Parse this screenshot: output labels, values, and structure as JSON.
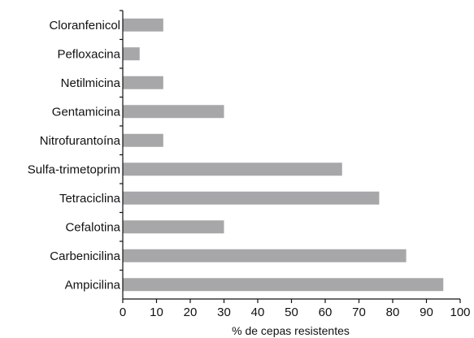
{
  "chart_data": {
    "type": "bar",
    "orientation": "horizontal",
    "categories": [
      "Cloranfenicol",
      "Pefloxacina",
      "Netilmicina",
      "Gentamicina",
      "Nitrofurantoína",
      "Sulfa-trimetoprim",
      "Tetraciclina",
      "Cefalotina",
      "Carbenicilina",
      "Ampicilina"
    ],
    "values": [
      12,
      5,
      12,
      30,
      12,
      65,
      76,
      30,
      84,
      95
    ],
    "xlabel": "% de cepas resistentes",
    "ylabel": "",
    "xlim": [
      0,
      100
    ],
    "xticks": [
      0,
      10,
      20,
      30,
      40,
      50,
      60,
      70,
      80,
      90,
      100
    ],
    "grid": false,
    "bar_color": "#a7a7a9"
  }
}
